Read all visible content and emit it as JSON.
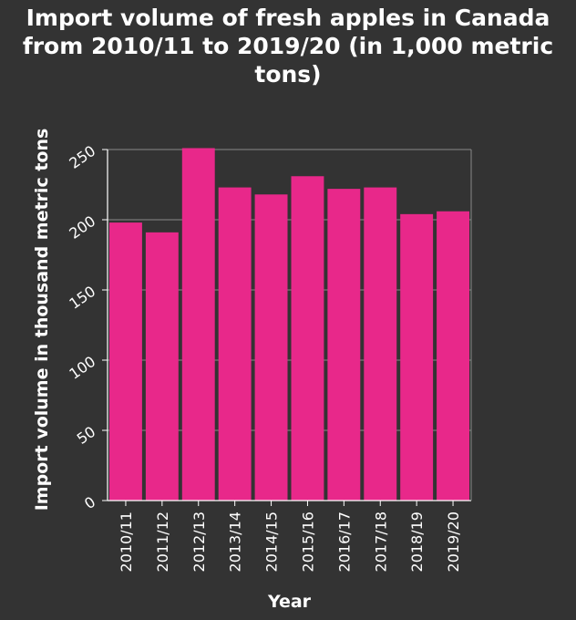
{
  "chart_data": {
    "type": "bar",
    "title": "Import volume of fresh apples in Canada from 2010/11 to 2019/20 (in 1,000 metric tons)",
    "xlabel": "Year",
    "ylabel": "Import volume in thousand metric tons",
    "categories": [
      "2010/11",
      "2011/12",
      "2012/13",
      "2013/14",
      "2014/15",
      "2015/16",
      "2016/17",
      "2017/18",
      "2018/19",
      "2019/20"
    ],
    "values": [
      198,
      191,
      251,
      223,
      218,
      231,
      222,
      223,
      204,
      206
    ],
    "ylim": [
      0,
      250
    ],
    "yticks": [
      "0",
      "50",
      "100",
      "150",
      "200",
      "250"
    ],
    "grid": true,
    "legend": "none",
    "colors": {
      "background": "#333333",
      "plot_background": "#333333",
      "bar": "#e8288a",
      "text": "#ffffff",
      "grid": "#888888"
    }
  }
}
